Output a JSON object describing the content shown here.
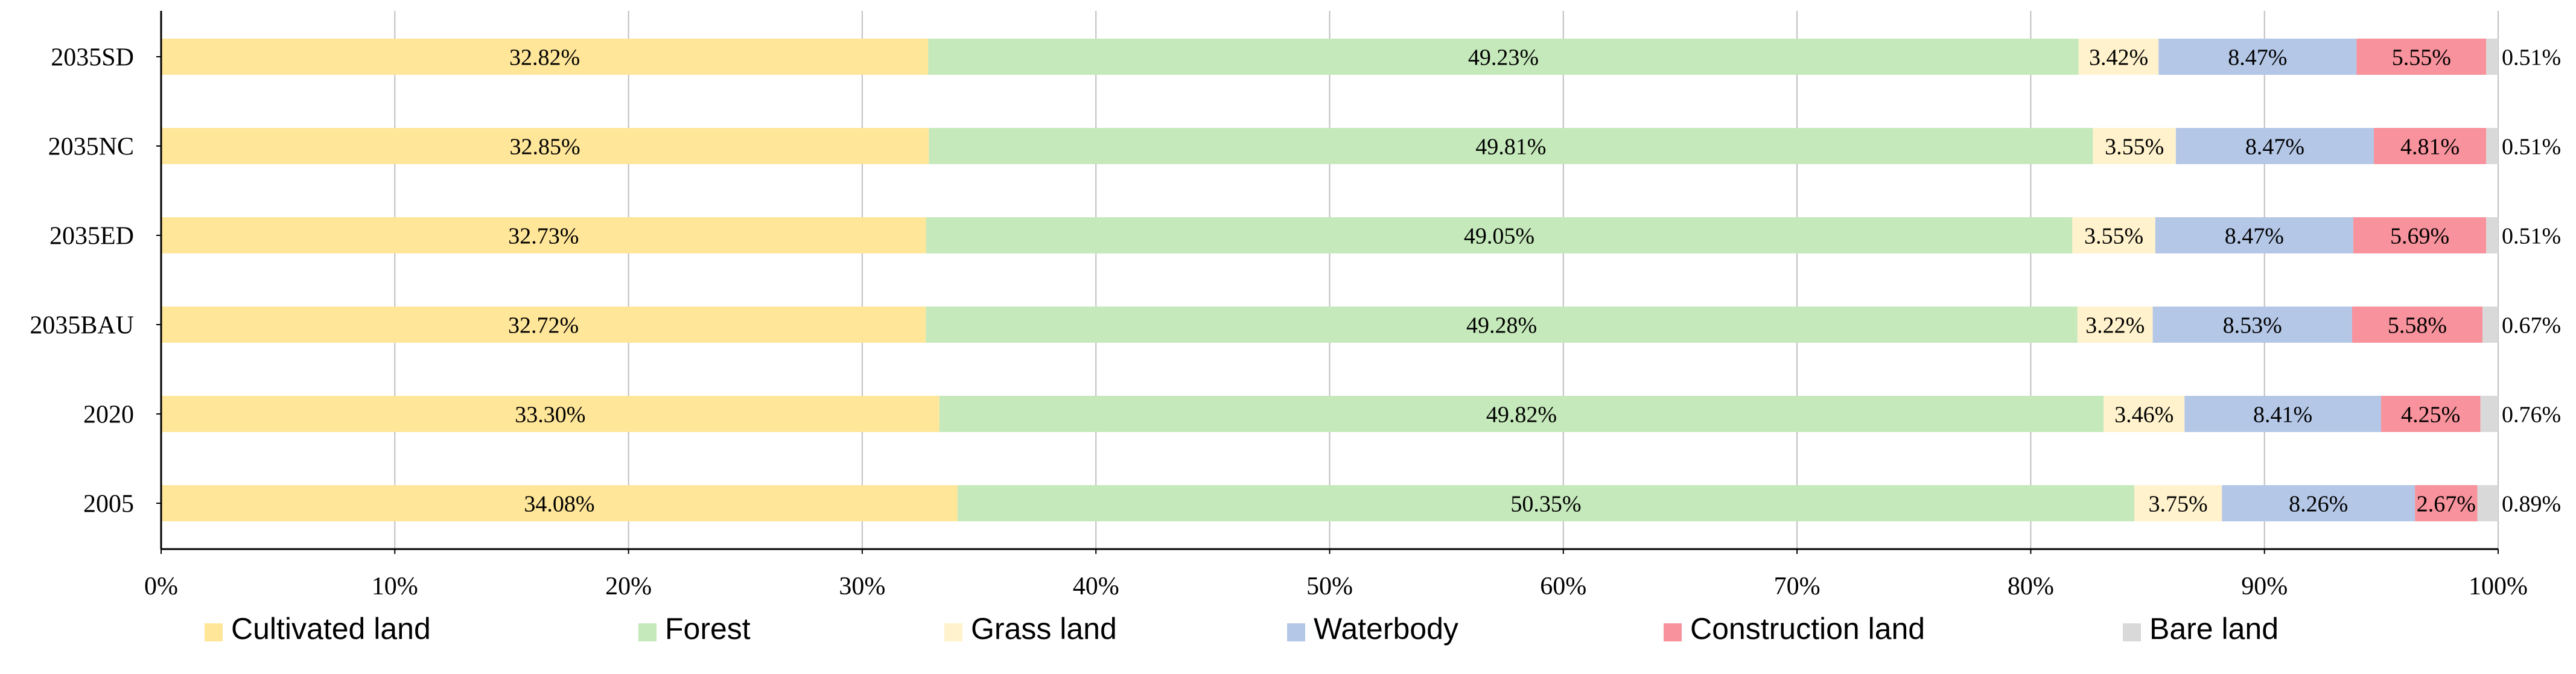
{
  "chart_data": {
    "type": "bar",
    "orientation": "horizontal",
    "stacked": "percent",
    "title": "",
    "xlabel": "",
    "ylabel": "",
    "xlim": [
      0,
      100
    ],
    "x_ticks": [
      "0%",
      "10%",
      "20%",
      "30%",
      "40%",
      "50%",
      "60%",
      "70%",
      "80%",
      "90%",
      "100%"
    ],
    "grid": "vertical",
    "legend_position": "bottom",
    "categories": [
      "2035SD",
      "2035NC",
      "2035ED",
      "2035BAU",
      "2020",
      "2005"
    ],
    "series": [
      {
        "name": "Cultivated land",
        "label": "Cultivated land",
        "color": "#FFE699",
        "values": [
          32.82,
          32.85,
          32.73,
          32.72,
          33.3,
          34.08
        ],
        "labels": [
          "32.82%",
          "32.85%",
          "32.73%",
          "32.72%",
          "33.30%",
          "34.08%"
        ]
      },
      {
        "name": "Forest",
        "label": "Forest",
        "color": "#C5E9BB",
        "values": [
          49.23,
          49.81,
          49.05,
          49.28,
          49.82,
          50.35
        ],
        "labels": [
          "49.23%",
          "49.81%",
          "49.05%",
          "49.28%",
          "49.82%",
          "50.35%"
        ]
      },
      {
        "name": "Grass land",
        "label": "Grass land",
        "color": "#FFF2CC",
        "values": [
          3.42,
          3.55,
          3.55,
          3.22,
          3.46,
          3.75
        ],
        "labels": [
          "3.42%",
          "3.55%",
          "3.55%",
          "3.22%",
          "3.46%",
          "3.75%"
        ]
      },
      {
        "name": "Waterbody",
        "label": "Waterbody",
        "color": "#B4C7E7",
        "values": [
          8.47,
          8.47,
          8.47,
          8.53,
          8.41,
          8.26
        ],
        "labels": [
          "8.47%",
          "8.47%",
          "8.47%",
          "8.53%",
          "8.41%",
          "8.26%"
        ]
      },
      {
        "name": "Construction land",
        "label": "Construction land",
        "color": "#F8929C",
        "values": [
          5.55,
          4.81,
          5.69,
          5.58,
          4.25,
          2.67
        ],
        "labels": [
          "5.55%",
          "4.81%",
          "5.69%",
          "5.58%",
          "4.25%",
          "2.67%"
        ]
      },
      {
        "name": "Bare land",
        "label": "Bare land",
        "color": "#D9D9D9",
        "values": [
          0.51,
          0.51,
          0.51,
          0.67,
          0.76,
          0.89
        ],
        "labels": [
          "0.51%",
          "0.51%",
          "0.51%",
          "0.67%",
          "0.76%",
          "0.89%"
        ]
      }
    ]
  },
  "colors": {
    "axis": "#000000",
    "grid": "#BFBFBF",
    "text": "#000000"
  }
}
